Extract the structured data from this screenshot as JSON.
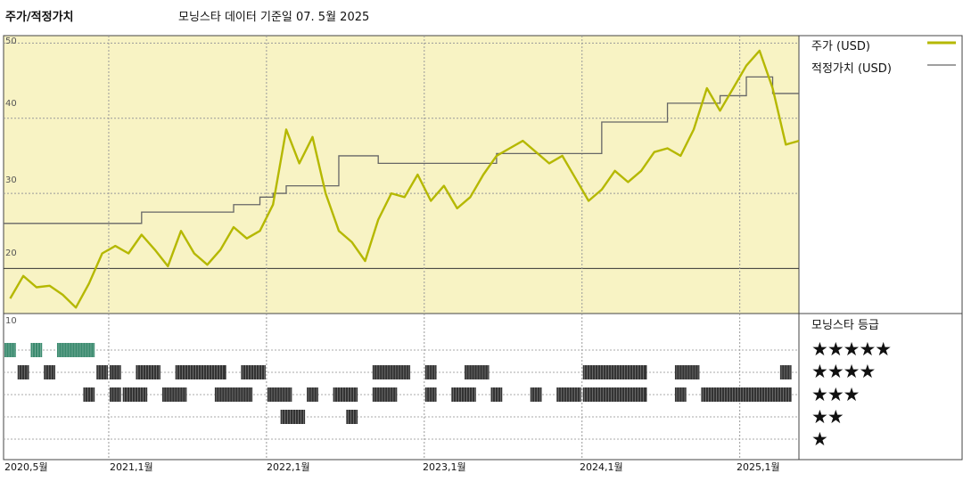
{
  "header": {
    "title": "주가/적정가치",
    "subtitle": "모닝스타 데이터 기준일 07. 5월 2025"
  },
  "legend": {
    "price_label": "주가 (USD)",
    "fair_label": "적정가치 (USD)",
    "price_color": "#b5b800",
    "fair_color": "#666666",
    "rating_title": "모닝스타 등급"
  },
  "ratings": {
    "stars5": "★★★★★",
    "stars4": "★★★★",
    "stars3": "★★★",
    "stars2": "★★",
    "stars1": "★"
  },
  "chart_data": {
    "type": "line",
    "title": "주가/적정가치",
    "x_ticks": [
      "2020,5월",
      "2021,1월",
      "2022,1월",
      "2023,1월",
      "2024,1월",
      "2025,1월"
    ],
    "x_tick_dates": [
      "2020-05",
      "2021-01",
      "2022-01",
      "2023-01",
      "2024-01",
      "2025-01"
    ],
    "x_range": [
      "2020-05",
      "2025-05"
    ],
    "y_ticks": [
      20,
      30,
      40,
      50
    ],
    "ylim": [
      14,
      51
    ],
    "grid": true,
    "legend_position": "right",
    "background_color": "#f8f3c4",
    "series": [
      {
        "name": "주가 (USD)",
        "color": "#b5b800",
        "points": [
          [
            "2020-05",
            16
          ],
          [
            "2020-06",
            19
          ],
          [
            "2020-07",
            17.5
          ],
          [
            "2020-08",
            17.7
          ],
          [
            "2020-09",
            16.5
          ],
          [
            "2020-10",
            14.8
          ],
          [
            "2020-11",
            18
          ],
          [
            "2020-12",
            22
          ],
          [
            "2021-01",
            23
          ],
          [
            "2021-02",
            22
          ],
          [
            "2021-03",
            24.5
          ],
          [
            "2021-04",
            22.5
          ],
          [
            "2021-05",
            20.3
          ],
          [
            "2021-06",
            25
          ],
          [
            "2021-07",
            22
          ],
          [
            "2021-08",
            20.5
          ],
          [
            "2021-09",
            22.5
          ],
          [
            "2021-10",
            25.5
          ],
          [
            "2021-11",
            24
          ],
          [
            "2021-12",
            25
          ],
          [
            "2022-01",
            28.5
          ],
          [
            "2022-02",
            38.5
          ],
          [
            "2022-03",
            34
          ],
          [
            "2022-04",
            37.5
          ],
          [
            "2022-05",
            30
          ],
          [
            "2022-06",
            25
          ],
          [
            "2022-07",
            23.5
          ],
          [
            "2022-08",
            21
          ],
          [
            "2022-09",
            26.5
          ],
          [
            "2022-10",
            30
          ],
          [
            "2022-11",
            29.5
          ],
          [
            "2022-12",
            32.5
          ],
          [
            "2023-01",
            29
          ],
          [
            "2023-02",
            31
          ],
          [
            "2023-03",
            28
          ],
          [
            "2023-04",
            29.5
          ],
          [
            "2023-05",
            32.5
          ],
          [
            "2023-06",
            35
          ],
          [
            "2023-07",
            36
          ],
          [
            "2023-08",
            37
          ],
          [
            "2023-09",
            35.5
          ],
          [
            "2023-10",
            34
          ],
          [
            "2023-11",
            35
          ],
          [
            "2023-12",
            32
          ],
          [
            "2024-01",
            29
          ],
          [
            "2024-02",
            30.5
          ],
          [
            "2024-03",
            33
          ],
          [
            "2024-04",
            31.5
          ],
          [
            "2024-05",
            33
          ],
          [
            "2024-06",
            35.5
          ],
          [
            "2024-07",
            36
          ],
          [
            "2024-08",
            35
          ],
          [
            "2024-09",
            38.5
          ],
          [
            "2024-10",
            44
          ],
          [
            "2024-11",
            41
          ],
          [
            "2024-12",
            44
          ],
          [
            "2025-01",
            47
          ],
          [
            "2025-02",
            49
          ],
          [
            "2025-03",
            44
          ],
          [
            "2025-04",
            36.5
          ],
          [
            "2025-05",
            37
          ]
        ]
      },
      {
        "name": "적정가치 (USD)",
        "color": "#666666",
        "steps": [
          [
            "2020-05",
            26
          ],
          [
            "2021-03",
            27.5
          ],
          [
            "2021-10",
            28.5
          ],
          [
            "2021-12",
            29.5
          ],
          [
            "2022-01",
            30
          ],
          [
            "2022-02",
            31
          ],
          [
            "2022-06",
            35
          ],
          [
            "2022-09",
            34
          ],
          [
            "2023-06",
            35.3
          ],
          [
            "2023-11",
            35.3
          ],
          [
            "2024-02",
            39.5
          ],
          [
            "2024-07",
            42
          ],
          [
            "2024-11",
            43
          ],
          [
            "2025-01",
            45.5
          ],
          [
            "2025-03",
            43.3
          ],
          [
            "2025-05",
            43.3
          ]
        ]
      }
    ],
    "rating_bands": [
      {
        "stars": 5,
        "color": "#3a8a6e",
        "ranges": [
          [
            "2020-05",
            "2020-06"
          ],
          [
            "2020-07",
            "2020-08"
          ],
          [
            "2020-09",
            "2020-12"
          ]
        ]
      },
      {
        "stars": 4,
        "color": "#333333",
        "ranges": [
          [
            "2020-06",
            "2020-07"
          ],
          [
            "2020-08",
            "2020-09"
          ],
          [
            "2020-12",
            "2021-01"
          ],
          [
            "2021-01",
            "2021-02"
          ],
          [
            "2021-03",
            "2021-05"
          ],
          [
            "2021-06",
            "2021-10"
          ],
          [
            "2021-11",
            "2022-01"
          ],
          [
            "2022-09",
            "2022-12"
          ],
          [
            "2023-01",
            "2023-02"
          ],
          [
            "2023-04",
            "2023-06"
          ],
          [
            "2024-01",
            "2024-06"
          ],
          [
            "2024-08",
            "2024-10"
          ],
          [
            "2025-04",
            "2025-05"
          ]
        ]
      },
      {
        "stars": 3,
        "color": "#333333",
        "ranges": [
          [
            "2020-11",
            "2020-12"
          ],
          [
            "2021-01",
            "2021-02"
          ],
          [
            "2021-02",
            "2021-04"
          ],
          [
            "2021-05",
            "2021-07"
          ],
          [
            "2021-09",
            "2021-12"
          ],
          [
            "2022-01",
            "2022-03"
          ],
          [
            "2022-04",
            "2022-05"
          ],
          [
            "2022-06",
            "2022-08"
          ],
          [
            "2022-09",
            "2022-11"
          ],
          [
            "2023-01",
            "2023-02"
          ],
          [
            "2023-03",
            "2023-05"
          ],
          [
            "2023-06",
            "2023-07"
          ],
          [
            "2023-09",
            "2023-10"
          ],
          [
            "2023-11",
            "2024-01"
          ],
          [
            "2024-01",
            "2024-06"
          ],
          [
            "2024-08",
            "2024-09"
          ],
          [
            "2024-10",
            "2025-05"
          ]
        ]
      },
      {
        "stars": 2,
        "color": "#333333",
        "ranges": [
          [
            "2022-02",
            "2022-04"
          ],
          [
            "2022-07",
            "2022-08"
          ]
        ]
      },
      {
        "stars": 1,
        "color": "#333333",
        "ranges": []
      }
    ],
    "lower_panel_y_label": "10"
  }
}
